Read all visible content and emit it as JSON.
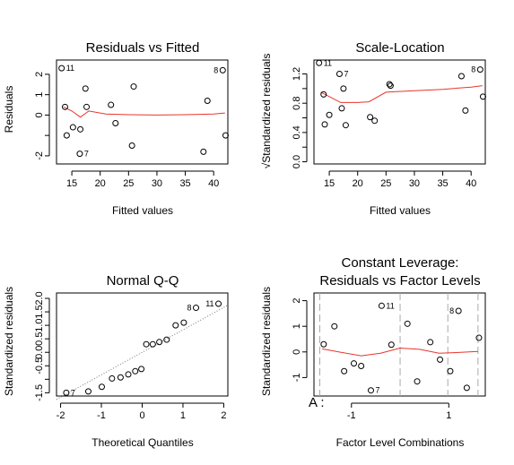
{
  "chart_data": [
    {
      "panel": "residuals-vs-fitted",
      "type": "scatter",
      "title": "Residuals vs Fitted",
      "xlabel": "Fitted values",
      "ylabel": "Residuals",
      "xlim": [
        12.3,
        42.5
      ],
      "ylim": [
        -2.4,
        2.7
      ],
      "xticks": [
        15,
        20,
        25,
        30,
        35,
        40
      ],
      "yticks": [
        -2,
        -1,
        0,
        1,
        2
      ],
      "ytick_labels": [
        "-2",
        "",
        "0",
        "1",
        "2"
      ],
      "points": [
        {
          "x": 13.2,
          "y": 2.3,
          "label": "11"
        },
        {
          "x": 13.8,
          "y": 0.4,
          "label": ""
        },
        {
          "x": 14.1,
          "y": -1.0,
          "label": ""
        },
        {
          "x": 15.2,
          "y": -0.6,
          "label": ""
        },
        {
          "x": 16.5,
          "y": -0.7,
          "label": ""
        },
        {
          "x": 16.4,
          "y": -1.9,
          "label": "7"
        },
        {
          "x": 17.4,
          "y": 1.3,
          "label": ""
        },
        {
          "x": 17.6,
          "y": 0.4,
          "label": ""
        },
        {
          "x": 21.9,
          "y": 0.5,
          "label": ""
        },
        {
          "x": 22.7,
          "y": -0.4,
          "label": ""
        },
        {
          "x": 25.6,
          "y": -1.5,
          "label": ""
        },
        {
          "x": 25.9,
          "y": 1.4,
          "label": ""
        },
        {
          "x": 38.2,
          "y": -1.8,
          "label": ""
        },
        {
          "x": 38.9,
          "y": 0.7,
          "label": ""
        },
        {
          "x": 41.6,
          "y": 2.2,
          "label": "8"
        },
        {
          "x": 42.1,
          "y": -1.0,
          "label": ""
        }
      ],
      "smooth": [
        [
          13.5,
          0.4
        ],
        [
          15,
          0.2
        ],
        [
          16.5,
          -0.1
        ],
        [
          18,
          0.2
        ],
        [
          21,
          0.05
        ],
        [
          25,
          0.02
        ],
        [
          30,
          0.0
        ],
        [
          35,
          0.02
        ],
        [
          40,
          0.05
        ],
        [
          42,
          0.1
        ]
      ]
    },
    {
      "panel": "scale-location",
      "type": "scatter",
      "title": "Scale-Location",
      "xlabel": "Fitted values",
      "ylabel": "√Standardized residuals",
      "xlim": [
        12.3,
        42.5
      ],
      "ylim": [
        -0.03,
        1.39
      ],
      "xticks": [
        15,
        20,
        25,
        30,
        35,
        40
      ],
      "yticks": [
        0.0,
        0.2,
        0.4,
        0.6,
        0.8,
        1.0,
        1.2
      ],
      "ytick_labels": [
        "0.0",
        "",
        "0.4",
        "",
        "0.8",
        "",
        "1.2"
      ],
      "points": [
        {
          "x": 13.2,
          "y": 1.35,
          "label": "11"
        },
        {
          "x": 14.0,
          "y": 0.92,
          "label": ""
        },
        {
          "x": 14.2,
          "y": 0.51,
          "label": ""
        },
        {
          "x": 15.0,
          "y": 0.64,
          "label": ""
        },
        {
          "x": 16.8,
          "y": 1.2,
          "label": "7"
        },
        {
          "x": 17.2,
          "y": 0.73,
          "label": ""
        },
        {
          "x": 17.5,
          "y": 1.0,
          "label": ""
        },
        {
          "x": 17.9,
          "y": 0.5,
          "label": ""
        },
        {
          "x": 22.2,
          "y": 0.61,
          "label": ""
        },
        {
          "x": 23.0,
          "y": 0.56,
          "label": ""
        },
        {
          "x": 25.6,
          "y": 1.06,
          "label": ""
        },
        {
          "x": 25.8,
          "y": 1.04,
          "label": ""
        },
        {
          "x": 38.3,
          "y": 1.17,
          "label": ""
        },
        {
          "x": 39.0,
          "y": 0.7,
          "label": ""
        },
        {
          "x": 41.6,
          "y": 1.26,
          "label": "8"
        },
        {
          "x": 42.1,
          "y": 0.89,
          "label": ""
        }
      ],
      "smooth": [
        [
          13.5,
          0.95
        ],
        [
          15,
          0.89
        ],
        [
          17,
          0.81
        ],
        [
          20,
          0.81
        ],
        [
          22,
          0.82
        ],
        [
          25,
          0.95
        ],
        [
          30,
          0.97
        ],
        [
          35,
          0.99
        ],
        [
          40,
          1.02
        ],
        [
          42,
          1.04
        ]
      ]
    },
    {
      "panel": "normal-qq",
      "type": "scatter",
      "title": "Normal Q-Q",
      "xlabel": "Theoretical Quantiles",
      "ylabel": "Standardized residuals",
      "xlim": [
        -2.1,
        2.1
      ],
      "ylim": [
        -1.62,
        2.2
      ],
      "xticks": [
        -2,
        -1,
        0,
        1,
        2
      ],
      "yticks": [
        -1.5,
        -1.0,
        -0.5,
        0.0,
        0.5,
        1.0,
        1.5,
        2.0
      ],
      "ytick_labels": [
        "-1.5",
        "",
        "-0.5",
        "",
        "0.5",
        "",
        "1.5",
        ""
      ],
      "ytick_labels_extra": [
        "2.0",
        "1.0",
        "0.0"
      ],
      "points": [
        {
          "x": -1.86,
          "y": -1.5,
          "label": "7"
        },
        {
          "x": -1.32,
          "y": -1.45,
          "label": ""
        },
        {
          "x": -0.99,
          "y": -1.28,
          "label": ""
        },
        {
          "x": -0.74,
          "y": -0.97,
          "label": ""
        },
        {
          "x": -0.53,
          "y": -0.93,
          "label": ""
        },
        {
          "x": -0.34,
          "y": -0.82,
          "label": ""
        },
        {
          "x": -0.17,
          "y": -0.7,
          "label": ""
        },
        {
          "x": -0.02,
          "y": -0.62,
          "label": ""
        },
        {
          "x": 0.1,
          "y": 0.3,
          "label": ""
        },
        {
          "x": 0.26,
          "y": 0.3,
          "label": ""
        },
        {
          "x": 0.42,
          "y": 0.38,
          "label": ""
        },
        {
          "x": 0.6,
          "y": 0.47,
          "label": ""
        },
        {
          "x": 0.82,
          "y": 1.0,
          "label": ""
        },
        {
          "x": 1.02,
          "y": 1.1,
          "label": ""
        },
        {
          "x": 1.32,
          "y": 1.65,
          "label": "8"
        },
        {
          "x": 1.87,
          "y": 1.8,
          "label": "11"
        }
      ],
      "qqline": [
        [
          -2.1,
          -1.75
        ],
        [
          2.1,
          1.75
        ]
      ]
    },
    {
      "panel": "constant-leverage",
      "type": "scatter",
      "title": "Constant Leverage:",
      "subtitle": "Residuals vs Factor Levels",
      "xlabel": "Factor Level Combinations",
      "ylabel": "Standardized residuals",
      "xlim": [
        -1.77,
        1.75
      ],
      "ylim": [
        -1.72,
        2.3
      ],
      "xticks": [
        -1,
        1
      ],
      "yticks": [
        -1,
        0,
        1,
        2
      ],
      "factor_name": "A :",
      "vlines": [
        -1.65,
        0.0,
        0.98,
        1.6
      ],
      "points": [
        {
          "x": -1.57,
          "y": 0.3,
          "label": ""
        },
        {
          "x": -1.35,
          "y": 1.0,
          "label": ""
        },
        {
          "x": -1.15,
          "y": -0.75,
          "label": ""
        },
        {
          "x": -0.95,
          "y": -0.45,
          "label": ""
        },
        {
          "x": -0.8,
          "y": -0.55,
          "label": ""
        },
        {
          "x": -0.6,
          "y": -1.5,
          "label": "7"
        },
        {
          "x": -0.38,
          "y": 1.8,
          "label": "11"
        },
        {
          "x": -0.18,
          "y": 0.28,
          "label": ""
        },
        {
          "x": 0.15,
          "y": 1.1,
          "label": ""
        },
        {
          "x": 0.35,
          "y": -1.15,
          "label": ""
        },
        {
          "x": 0.62,
          "y": 0.38,
          "label": ""
        },
        {
          "x": 0.82,
          "y": -0.3,
          "label": ""
        },
        {
          "x": 1.03,
          "y": -0.75,
          "label": ""
        },
        {
          "x": 1.2,
          "y": 1.6,
          "label": "8"
        },
        {
          "x": 1.37,
          "y": -1.4,
          "label": ""
        },
        {
          "x": 1.62,
          "y": 0.55,
          "label": ""
        }
      ],
      "smooth": [
        [
          -1.6,
          0.12
        ],
        [
          -1.2,
          -0.02
        ],
        [
          -0.8,
          -0.15
        ],
        [
          -0.4,
          -0.05
        ],
        [
          0,
          0.15
        ],
        [
          0.4,
          0.1
        ],
        [
          0.8,
          -0.05
        ],
        [
          1.2,
          -0.02
        ],
        [
          1.6,
          0.02
        ]
      ]
    }
  ]
}
